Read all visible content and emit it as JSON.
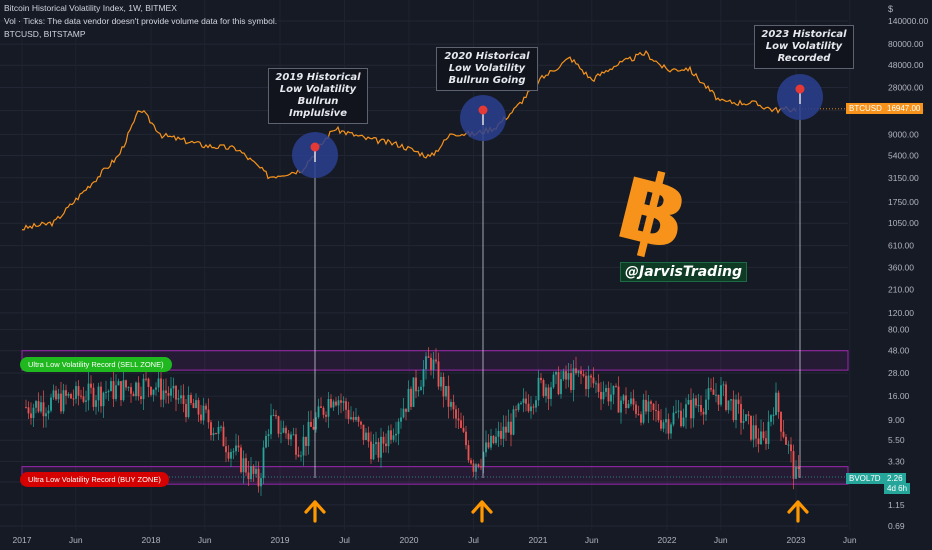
{
  "header": {
    "line1": "Bitcoin Historical Volatility Index, 1W, BITMEX",
    "line2": "Vol · Ticks: The data vendor doesn't provide volume data for this symbol.",
    "line3": "BTCUSD, BITSTAMP"
  },
  "annotations": [
    {
      "text": "2019 Historical\nLow Volatility\nBullrun\nImplulsive"
    },
    {
      "text": "2020 Historical\nLow Volatility\nBullrun Going"
    },
    {
      "text": "2023 Historical\nLow Volatility\nRecorded"
    }
  ],
  "zones": {
    "sell_label": "Ultra Low Volatility Record (SELL ZONE)",
    "buy_label": "Ultra Low Volatility Record (BUY ZONE)"
  },
  "handle": "@JarvisTrading",
  "colors": {
    "background": "#161a25",
    "btc_line": "#f7931a",
    "candle_up": "#26a69a",
    "candle_down": "#ef5350",
    "zone_border": "#9c27b0",
    "sell_label_bg": "#1fb81f",
    "buy_label_bg": "#d50000",
    "arrow": "#ff9800",
    "marker_circle": "#2a3f8f"
  },
  "price_tags": {
    "btc_symbol": "BTCUSD",
    "btc_value": "16947.00",
    "vol_symbol": "BVOL7D",
    "vol_value": "2.26",
    "vol_countdown": "4d 6h"
  },
  "chart_data": {
    "type": "line",
    "title": "Bitcoin Historical Volatility Index, 1W, BITMEX",
    "y_axis_label": "$",
    "y_scale": "log",
    "y_ticks": [
      "140000.00",
      "80000.00",
      "48000.00",
      "28000.00",
      "16000.00",
      "9000.00",
      "5400.00",
      "3150.00",
      "1750.00",
      "1050.00",
      "610.00",
      "360.00",
      "210.00",
      "120.00",
      "80.00",
      "48.00",
      "28.00",
      "16.00",
      "9.00",
      "5.50",
      "3.30",
      "2.00",
      "1.15",
      "0.69"
    ],
    "x_ticks": [
      "2017",
      "Jun",
      "2018",
      "Jun",
      "2019",
      "Jul",
      "2020",
      "Jul",
      "2021",
      "Jun",
      "2022",
      "Jun",
      "2023",
      "Jun"
    ],
    "series": [
      {
        "name": "BTCUSD",
        "x": [
          "2017-01",
          "2017-04",
          "2017-07",
          "2017-10",
          "2017-12",
          "2018-02",
          "2018-06",
          "2018-09",
          "2018-11",
          "2018-12",
          "2019-03",
          "2019-06",
          "2019-09",
          "2019-12",
          "2020-03",
          "2020-05",
          "2020-07",
          "2020-09",
          "2020-11",
          "2021-01",
          "2021-04",
          "2021-06",
          "2021-08",
          "2021-11",
          "2022-01",
          "2022-03",
          "2022-06",
          "2022-09",
          "2022-11",
          "2023-01"
        ],
        "values": [
          950,
          1100,
          2500,
          5500,
          17000,
          9000,
          7000,
          6500,
          4200,
          3300,
          3900,
          10500,
          8300,
          7200,
          5300,
          9500,
          9200,
          10800,
          17500,
          33000,
          58000,
          34000,
          47000,
          65000,
          43000,
          45000,
          20000,
          19500,
          16500,
          16947
        ]
      },
      {
        "name": "BVOL7D",
        "x": [
          "2017-01",
          "2017-06",
          "2018-01",
          "2018-06",
          "2018-11",
          "2018-12",
          "2019-03",
          "2019-06",
          "2019-10",
          "2020-03",
          "2020-07",
          "2020-10",
          "2021-01",
          "2021-05",
          "2021-09",
          "2022-01",
          "2022-06",
          "2022-10",
          "2022-11",
          "2023-01"
        ],
        "values": [
          12,
          16,
          22,
          10,
          2.0,
          9,
          5,
          18,
          4,
          40,
          3.2,
          7,
          20,
          26,
          14,
          9,
          18,
          5,
          16,
          2.26
        ]
      }
    ],
    "zones": [
      {
        "label": "Ultra Low Volatility Record (SELL ZONE)",
        "y_range": [
          30,
          48
        ]
      },
      {
        "label": "Ultra Low Volatility Record (BUY ZONE)",
        "y_range": [
          1.9,
          2.9
        ]
      }
    ],
    "markers": [
      {
        "x": "2019-05",
        "label": "2019 Historical Low Volatility Bullrun Implulsive"
      },
      {
        "x": "2020-07",
        "label": "2020 Historical Low Volatility Bullrun Going"
      },
      {
        "x": "2022-12",
        "label": "2023 Historical Low Volatility Recorded"
      }
    ],
    "grid": true,
    "legend": "top-left"
  }
}
